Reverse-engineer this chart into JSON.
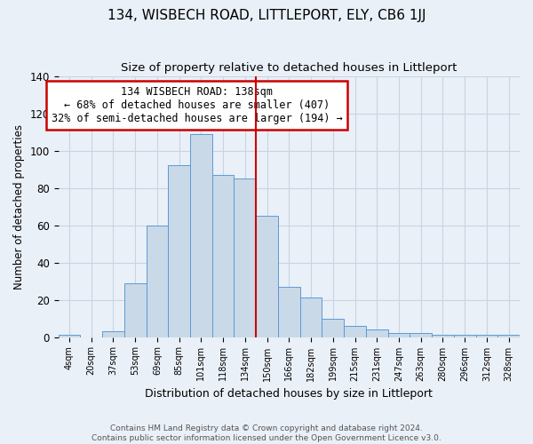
{
  "title": "134, WISBECH ROAD, LITTLEPORT, ELY, CB6 1JJ",
  "subtitle": "Size of property relative to detached houses in Littleport",
  "xlabel": "Distribution of detached houses by size in Littleport",
  "ylabel": "Number of detached properties",
  "bar_labels": [
    "4sqm",
    "20sqm",
    "37sqm",
    "53sqm",
    "69sqm",
    "85sqm",
    "101sqm",
    "118sqm",
    "134sqm",
    "150sqm",
    "166sqm",
    "182sqm",
    "199sqm",
    "215sqm",
    "231sqm",
    "247sqm",
    "263sqm",
    "280sqm",
    "296sqm",
    "312sqm",
    "328sqm"
  ],
  "bar_heights": [
    1,
    0,
    3,
    29,
    60,
    92,
    109,
    87,
    85,
    65,
    27,
    21,
    10,
    6,
    4,
    2,
    2,
    1,
    1,
    1,
    1
  ],
  "bar_color": "#c9d9e8",
  "bar_edge_color": "#5b9bd5",
  "grid_color": "#c8d4e3",
  "background_color": "#eaf0f8",
  "red_line_x": 8.5,
  "annotation_text": "134 WISBECH ROAD: 138sqm\n← 68% of detached houses are smaller (407)\n32% of semi-detached houses are larger (194) →",
  "annotation_box_color": "#ffffff",
  "annotation_box_edge": "#cc0000",
  "footer_text": "Contains HM Land Registry data © Crown copyright and database right 2024.\nContains public sector information licensed under the Open Government Licence v3.0.",
  "ylim": [
    0,
    140
  ],
  "title_fontsize": 11,
  "subtitle_fontsize": 9.5,
  "annot_fontsize": 8.5,
  "footer_fontsize": 6.5
}
